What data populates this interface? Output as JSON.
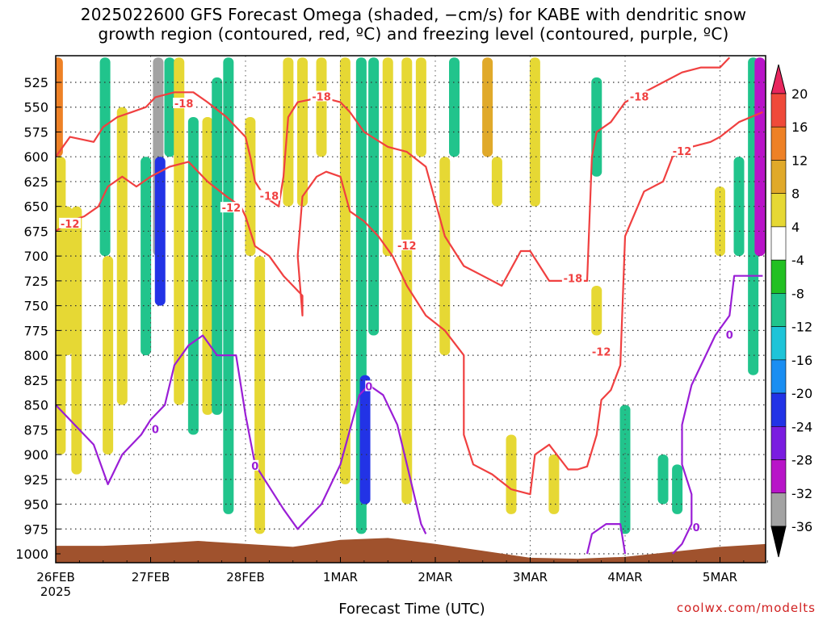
{
  "title_line1": "2025022600 GFS Forecast Omega (shaded, −cm/s) for KABE with dendritic snow",
  "title_line2": "growth region (contoured, red, ºC) and freezing level (contoured, purple, ºC)",
  "xlabel": "Forecast Time (UTC)",
  "credit": "coolwx.com/modelts",
  "chart_data": {
    "type": "heatmap",
    "title": "2025022600 GFS Forecast Omega (shaded, −cm/s) for KABE with dendritic snow growth region (contoured, red, ºC) and freezing level (contoured, purple, ºC)",
    "xlabel": "Forecast Time (UTC)",
    "ylabel": "",
    "x_ticks": [
      "26FEB",
      "27FEB",
      "28FEB",
      "1MAR",
      "2MAR",
      "3MAR",
      "4MAR",
      "5MAR"
    ],
    "x_year_label": "2025",
    "x_range_days": [
      0,
      7.5
    ],
    "y_ticks": [
      525,
      550,
      575,
      600,
      625,
      650,
      675,
      700,
      725,
      750,
      775,
      800,
      825,
      850,
      875,
      900,
      925,
      950,
      975,
      1000
    ],
    "y_range_hpa": [
      500,
      1010
    ],
    "colorbar": {
      "ticks": [
        20,
        16,
        12,
        8,
        4,
        -4,
        -8,
        -12,
        -16,
        -20,
        -24,
        -28,
        -32,
        -36
      ],
      "colors": [
        "#e8265e",
        "#ef4a3a",
        "#ee8126",
        "#e0a92a",
        "#e6d834",
        "#ffffff",
        "#22c022",
        "#21c48c",
        "#1ec4d8",
        "#1a8ef2",
        "#2233e6",
        "#7a1ce0",
        "#b814c8",
        "#a3a3a3",
        "#000000"
      ]
    },
    "omega_blobs": [
      {
        "t": 0.02,
        "p0": 500,
        "p1": 600,
        "v": 12
      },
      {
        "t": 0.05,
        "p0": 600,
        "p1": 900,
        "v": 6
      },
      {
        "t": 0.12,
        "p0": 650,
        "p1": 800,
        "v": 6
      },
      {
        "t": 0.22,
        "p0": 650,
        "p1": 920,
        "v": 6
      },
      {
        "t": 0.52,
        "p0": 500,
        "p1": 700,
        "v": -10
      },
      {
        "t": 0.55,
        "p0": 700,
        "p1": 900,
        "v": 6
      },
      {
        "t": 0.7,
        "p0": 550,
        "p1": 850,
        "v": 6
      },
      {
        "t": 0.95,
        "p0": 600,
        "p1": 800,
        "v": -10
      },
      {
        "t": 1.08,
        "p0": 500,
        "p1": 700,
        "v": -34
      },
      {
        "t": 1.1,
        "p0": 600,
        "p1": 750,
        "v": -20
      },
      {
        "t": 1.2,
        "p0": 500,
        "p1": 600,
        "v": -10
      },
      {
        "t": 1.3,
        "p0": 500,
        "p1": 850,
        "v": 6
      },
      {
        "t": 1.45,
        "p0": 560,
        "p1": 880,
        "v": -10
      },
      {
        "t": 1.6,
        "p0": 560,
        "p1": 860,
        "v": 6
      },
      {
        "t": 1.7,
        "p0": 520,
        "p1": 860,
        "v": -10
      },
      {
        "t": 1.82,
        "p0": 500,
        "p1": 960,
        "v": -10
      },
      {
        "t": 2.05,
        "p0": 560,
        "p1": 700,
        "v": 6
      },
      {
        "t": 2.15,
        "p0": 700,
        "p1": 980,
        "v": 6
      },
      {
        "t": 2.45,
        "p0": 500,
        "p1": 650,
        "v": 6
      },
      {
        "t": 2.6,
        "p0": 500,
        "p1": 650,
        "v": 6
      },
      {
        "t": 2.8,
        "p0": 500,
        "p1": 600,
        "v": 6
      },
      {
        "t": 3.05,
        "p0": 500,
        "p1": 930,
        "v": 6
      },
      {
        "t": 3.22,
        "p0": 500,
        "p1": 980,
        "v": -10
      },
      {
        "t": 3.26,
        "p0": 820,
        "p1": 950,
        "v": -20
      },
      {
        "t": 3.35,
        "p0": 500,
        "p1": 780,
        "v": -10
      },
      {
        "t": 3.5,
        "p0": 500,
        "p1": 700,
        "v": 6
      },
      {
        "t": 3.7,
        "p0": 500,
        "p1": 950,
        "v": 6
      },
      {
        "t": 3.85,
        "p0": 500,
        "p1": 600,
        "v": 6
      },
      {
        "t": 4.1,
        "p0": 600,
        "p1": 800,
        "v": 6
      },
      {
        "t": 4.2,
        "p0": 500,
        "p1": 600,
        "v": -8
      },
      {
        "t": 4.55,
        "p0": 500,
        "p1": 600,
        "v": 10
      },
      {
        "t": 4.65,
        "p0": 600,
        "p1": 650,
        "v": 6
      },
      {
        "t": 4.8,
        "p0": 880,
        "p1": 960,
        "v": 6
      },
      {
        "t": 5.05,
        "p0": 500,
        "p1": 650,
        "v": 6
      },
      {
        "t": 5.25,
        "p0": 900,
        "p1": 960,
        "v": 6
      },
      {
        "t": 5.7,
        "p0": 520,
        "p1": 620,
        "v": -10
      },
      {
        "t": 5.7,
        "p0": 730,
        "p1": 780,
        "v": 6
      },
      {
        "t": 6.0,
        "p0": 850,
        "p1": 980,
        "v": -10
      },
      {
        "t": 6.4,
        "p0": 900,
        "p1": 950,
        "v": -10
      },
      {
        "t": 6.55,
        "p0": 910,
        "p1": 960,
        "v": -10
      },
      {
        "t": 7.0,
        "p0": 630,
        "p1": 700,
        "v": 6
      },
      {
        "t": 7.2,
        "p0": 600,
        "p1": 700,
        "v": -10
      },
      {
        "t": 7.35,
        "p0": 500,
        "p1": 820,
        "v": -10
      },
      {
        "t": 7.42,
        "p0": 500,
        "p1": 700,
        "v": -28
      }
    ],
    "contours": [
      {
        "name": "-18",
        "level": -18,
        "color": "red",
        "points": [
          [
            0.0,
            600
          ],
          [
            0.15,
            580
          ],
          [
            0.4,
            585
          ],
          [
            0.5,
            570
          ],
          [
            0.65,
            560
          ],
          [
            0.8,
            555
          ],
          [
            0.95,
            550
          ],
          [
            1.05,
            540
          ],
          [
            1.25,
            535
          ],
          [
            1.45,
            535
          ],
          [
            1.6,
            545
          ],
          [
            1.8,
            560
          ],
          [
            2.0,
            580
          ],
          [
            2.05,
            600
          ],
          [
            2.1,
            625
          ],
          [
            2.2,
            640
          ],
          [
            2.35,
            650
          ],
          [
            2.4,
            620
          ],
          [
            2.45,
            560
          ],
          [
            2.55,
            545
          ],
          [
            2.8,
            540
          ],
          [
            3.0,
            545
          ],
          [
            3.1,
            555
          ],
          [
            3.25,
            575
          ],
          [
            3.5,
            590
          ],
          [
            3.7,
            595
          ],
          [
            3.9,
            610
          ],
          [
            4.1,
            680
          ],
          [
            4.3,
            710
          ],
          [
            4.5,
            720
          ],
          [
            4.7,
            730
          ],
          [
            4.9,
            695
          ],
          [
            5.0,
            695
          ],
          [
            5.2,
            725
          ],
          [
            5.5,
            725
          ],
          [
            5.6,
            725
          ],
          [
            5.65,
            600
          ],
          [
            5.7,
            575
          ],
          [
            5.85,
            565
          ],
          [
            6.0,
            545
          ],
          [
            6.2,
            535
          ],
          [
            6.4,
            525
          ],
          [
            6.6,
            515
          ],
          [
            6.8,
            510
          ],
          [
            7.0,
            510
          ],
          [
            7.1,
            500
          ]
        ]
      },
      {
        "name": "-12",
        "level": -12,
        "color": "red",
        "points": [
          [
            0.0,
            675
          ],
          [
            0.15,
            665
          ],
          [
            0.3,
            660
          ],
          [
            0.45,
            650
          ],
          [
            0.55,
            630
          ],
          [
            0.7,
            620
          ],
          [
            0.85,
            630
          ],
          [
            1.0,
            620
          ],
          [
            1.2,
            610
          ],
          [
            1.4,
            605
          ],
          [
            1.6,
            625
          ],
          [
            1.8,
            640
          ],
          [
            1.95,
            650
          ],
          [
            2.0,
            660
          ],
          [
            2.1,
            690
          ],
          [
            2.25,
            700
          ],
          [
            2.4,
            720
          ],
          [
            2.6,
            740
          ],
          [
            2.6,
            760
          ],
          [
            2.55,
            700
          ],
          [
            2.6,
            640
          ],
          [
            2.75,
            620
          ],
          [
            2.85,
            615
          ],
          [
            3.0,
            620
          ],
          [
            3.1,
            655
          ],
          [
            3.25,
            665
          ],
          [
            3.4,
            680
          ],
          [
            3.55,
            700
          ],
          [
            3.7,
            730
          ],
          [
            3.9,
            760
          ],
          [
            4.1,
            775
          ],
          [
            4.3,
            800
          ],
          [
            4.3,
            840
          ],
          [
            4.3,
            880
          ],
          [
            4.4,
            910
          ],
          [
            4.6,
            920
          ],
          [
            4.8,
            935
          ],
          [
            5.0,
            940
          ],
          [
            5.05,
            900
          ],
          [
            5.2,
            890
          ],
          [
            5.4,
            915
          ],
          [
            5.5,
            915
          ],
          [
            5.6,
            912
          ],
          [
            5.7,
            880
          ],
          [
            5.75,
            845
          ],
          [
            5.85,
            835
          ],
          [
            5.95,
            810
          ],
          [
            6.0,
            680
          ],
          [
            6.2,
            635
          ],
          [
            6.4,
            625
          ],
          [
            6.5,
            600
          ],
          [
            6.6,
            595
          ],
          [
            6.7,
            590
          ],
          [
            6.9,
            585
          ],
          [
            7.0,
            580
          ],
          [
            7.2,
            565
          ],
          [
            7.45,
            555
          ]
        ]
      },
      {
        "name": "0",
        "level": 0,
        "color": "purple",
        "points": [
          [
            0.0,
            850
          ],
          [
            0.2,
            870
          ],
          [
            0.4,
            890
          ],
          [
            0.55,
            930
          ],
          [
            0.7,
            900
          ],
          [
            0.9,
            880
          ],
          [
            1.0,
            865
          ],
          [
            1.15,
            850
          ],
          [
            1.25,
            810
          ],
          [
            1.4,
            790
          ],
          [
            1.55,
            780
          ],
          [
            1.7,
            800
          ],
          [
            1.9,
            800
          ],
          [
            2.0,
            860
          ],
          [
            2.1,
            910
          ],
          [
            2.2,
            925
          ],
          [
            2.4,
            955
          ],
          [
            2.55,
            975
          ],
          [
            2.8,
            950
          ],
          [
            3.0,
            910
          ],
          [
            3.1,
            875
          ],
          [
            3.2,
            840
          ],
          [
            3.3,
            830
          ],
          [
            3.45,
            840
          ],
          [
            3.6,
            870
          ],
          [
            3.7,
            910
          ],
          [
            3.85,
            970
          ],
          [
            3.9,
            980
          ]
        ]
      },
      {
        "name": "0b",
        "level": 0,
        "color": "purple",
        "points": [
          [
            5.6,
            1000
          ],
          [
            5.65,
            980
          ],
          [
            5.8,
            970
          ],
          [
            5.95,
            970
          ],
          [
            6.0,
            1000
          ]
        ]
      },
      {
        "name": "0c",
        "level": 0,
        "color": "purple",
        "points": [
          [
            6.5,
            1000
          ],
          [
            6.6,
            990
          ],
          [
            6.7,
            970
          ],
          [
            6.7,
            940
          ],
          [
            6.6,
            910
          ],
          [
            6.6,
            870
          ],
          [
            6.7,
            830
          ],
          [
            6.85,
            800
          ],
          [
            6.95,
            780
          ],
          [
            7.1,
            760
          ],
          [
            7.15,
            720
          ],
          [
            7.3,
            720
          ],
          [
            7.45,
            720
          ]
        ]
      }
    ],
    "contour_labels": [
      {
        "text": "-18",
        "t": 1.35,
        "p": 547
      },
      {
        "text": "-18",
        "t": 2.8,
        "p": 540
      },
      {
        "text": "-18",
        "t": 2.25,
        "p": 640
      },
      {
        "text": "-18",
        "t": 5.45,
        "p": 723
      },
      {
        "text": "-18",
        "t": 6.15,
        "p": 540
      },
      {
        "text": "-12",
        "t": 0.15,
        "p": 668
      },
      {
        "text": "-12",
        "t": 1.85,
        "p": 652
      },
      {
        "text": "-12",
        "t": 3.7,
        "p": 690
      },
      {
        "text": "-12",
        "t": 5.75,
        "p": 797
      },
      {
        "text": "-12",
        "t": 6.6,
        "p": 595
      },
      {
        "text": "0",
        "t": 1.05,
        "p": 875
      },
      {
        "text": "0",
        "t": 2.1,
        "p": 912
      },
      {
        "text": "0",
        "t": 3.3,
        "p": 832
      },
      {
        "text": "0",
        "t": 6.75,
        "p": 974
      },
      {
        "text": "0",
        "t": 7.1,
        "p": 780
      }
    ],
    "terrain_top_hpa": [
      [
        0,
        992
      ],
      [
        0.5,
        992
      ],
      [
        1.0,
        990
      ],
      [
        1.5,
        987
      ],
      [
        2.0,
        990
      ],
      [
        2.5,
        993
      ],
      [
        3.0,
        986
      ],
      [
        3.5,
        984
      ],
      [
        4.0,
        990
      ],
      [
        4.5,
        997
      ],
      [
        5.0,
        1004
      ],
      [
        5.5,
        1005
      ],
      [
        6.0,
        1003
      ],
      [
        6.5,
        998
      ],
      [
        7.0,
        993
      ],
      [
        7.5,
        990
      ]
    ]
  }
}
